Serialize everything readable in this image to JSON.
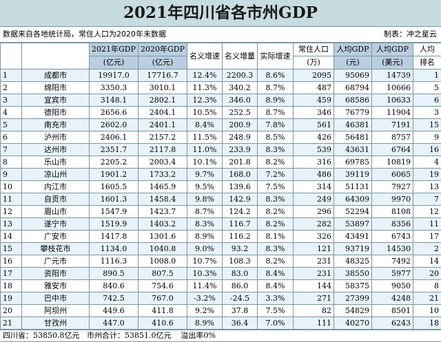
{
  "title": "2021年四川省各市州GDP",
  "note_left": "数据来自各地统计局，常住人口为2020年末数据",
  "note_right": "制表：冲之星云",
  "headers": {
    "gdp2021_top": "2021年GDP",
    "gdp2021_bottom": "(亿元)",
    "gdp2020_top": "2020年GDP",
    "gdp2020_bottom": "(亿元)",
    "nominal_growth": "名义增速",
    "nominal_increase": "名义增量",
    "real_growth": "实际增速",
    "pop_top": "常住人口",
    "pop_bottom": "(万)",
    "percap_top": "人均GDP",
    "percap_bottom": "(元)",
    "percap_usd_top": "人均GDP",
    "percap_usd_bottom": "(美元)",
    "rank_top": "人均",
    "rank_bottom": "排名"
  },
  "rows": [
    {
      "idx": "1",
      "city": "成都市",
      "g21": "19917.0",
      "g20": "17716.7",
      "ng": "12.4%",
      "ni": "2200.3",
      "rg": "8.6%",
      "pop": "2095",
      "pc": "95069",
      "pcu": "14739",
      "rank": "1"
    },
    {
      "idx": "2",
      "city": "绵阳市",
      "g21": "3350.3",
      "g20": "3010.1",
      "ng": "11.3%",
      "ni": "340.2",
      "rg": "8.7%",
      "pop": "487",
      "pc": "68794",
      "pcu": "10666",
      "rank": "5"
    },
    {
      "idx": "3",
      "city": "宜宾市",
      "g21": "3148.1",
      "g20": "2802.1",
      "ng": "12.3%",
      "ni": "346.0",
      "rg": "8.9%",
      "pop": "459",
      "pc": "68586",
      "pcu": "10633",
      "rank": "6"
    },
    {
      "idx": "4",
      "city": "德阳市",
      "g21": "2656.6",
      "g20": "2404.1",
      "ng": "10.5%",
      "ni": "252.5",
      "rg": "8.7%",
      "pop": "346",
      "pc": "76779",
      "pcu": "11904",
      "rank": "3"
    },
    {
      "idx": "5",
      "city": "南充市",
      "g21": "2602.0",
      "g20": "2401.1",
      "ng": "8.4%",
      "ni": "200.9",
      "rg": "7.8%",
      "pop": "561",
      "pc": "46381",
      "pcu": "7191",
      "rank": "15"
    },
    {
      "idx": "6",
      "city": "泸州市",
      "g21": "2406.1",
      "g20": "2157.2",
      "ng": "11.5%",
      "ni": "248.9",
      "rg": "8.5%",
      "pop": "426",
      "pc": "56481",
      "pcu": "8757",
      "rank": "9"
    },
    {
      "idx": "7",
      "city": "达州市",
      "g21": "2351.7",
      "g20": "2117.8",
      "ng": "11.0%",
      "ni": "233.9",
      "rg": "8.3%",
      "pop": "539",
      "pc": "43631",
      "pcu": "6764",
      "rank": "16"
    },
    {
      "idx": "8",
      "city": "乐山市",
      "g21": "2205.2",
      "g20": "2003.4",
      "ng": "10.1%",
      "ni": "201.8",
      "rg": "8.2%",
      "pop": "316",
      "pc": "69785",
      "pcu": "10819",
      "rank": "4"
    },
    {
      "idx": "9",
      "city": "凉山州",
      "g21": "1901.2",
      "g20": "1733.2",
      "ng": "9.7%",
      "ni": "168.0",
      "rg": "7.2%",
      "pop": "486",
      "pc": "39119",
      "pcu": "6065",
      "rank": "19"
    },
    {
      "idx": "10",
      "city": "内江市",
      "g21": "1605.5",
      "g20": "1465.9",
      "ng": "9.5%",
      "ni": "139.6",
      "rg": "7.5%",
      "pop": "314",
      "pc": "51131",
      "pcu": "7927",
      "rank": "13"
    },
    {
      "idx": "11",
      "city": "自贡市",
      "g21": "1601.3",
      "g20": "1458.4",
      "ng": "9.8%",
      "ni": "142.9",
      "rg": "8.3%",
      "pop": "249",
      "pc": "64309",
      "pcu": "9970",
      "rank": "7"
    },
    {
      "idx": "12",
      "city": "眉山市",
      "g21": "1547.9",
      "g20": "1423.7",
      "ng": "8.7%",
      "ni": "124.2",
      "rg": "8.2%",
      "pop": "296",
      "pc": "52294",
      "pcu": "8108",
      "rank": "12"
    },
    {
      "idx": "13",
      "city": "遂宁市",
      "g21": "1519.9",
      "g20": "1403.2",
      "ng": "8.3%",
      "ni": "116.7",
      "rg": "8.2%",
      "pop": "282",
      "pc": "53897",
      "pcu": "8356",
      "rank": "11"
    },
    {
      "idx": "14",
      "city": "广安市",
      "g21": "1417.8",
      "g20": "1301.6",
      "ng": "8.9%",
      "ni": "116.2",
      "rg": "8.1%",
      "pop": "326",
      "pc": "43491",
      "pcu": "6743",
      "rank": "17"
    },
    {
      "idx": "15",
      "city": "攀枝花市",
      "g21": "1134.0",
      "g20": "1040.8",
      "ng": "9.0%",
      "ni": "93.2",
      "rg": "8.3%",
      "pop": "121",
      "pc": "93719",
      "pcu": "14530",
      "rank": "2"
    },
    {
      "idx": "16",
      "city": "广元市",
      "g21": "1116.3",
      "g20": "1008.0",
      "ng": "10.7%",
      "ni": "108.3",
      "rg": "8.2%",
      "pop": "231",
      "pc": "48325",
      "pcu": "7492",
      "rank": "14"
    },
    {
      "idx": "17",
      "city": "资阳市",
      "g21": "890.5",
      "g20": "807.5",
      "ng": "10.3%",
      "ni": "83.0",
      "rg": "8.4%",
      "pop": "231",
      "pc": "38550",
      "pcu": "5977",
      "rank": "20"
    },
    {
      "idx": "18",
      "city": "雅安市",
      "g21": "840.6",
      "g20": "754.6",
      "ng": "11.4%",
      "ni": "86.0",
      "rg": "8.4%",
      "pop": "144",
      "pc": "58375",
      "pcu": "9050",
      "rank": "8"
    },
    {
      "idx": "19",
      "city": "巴中市",
      "g21": "742.5",
      "g20": "767.0",
      "ng": "-3.2%",
      "ni": "-24.5",
      "rg": "3.3%",
      "pop": "271",
      "pc": "27399",
      "pcu": "4248",
      "rank": "21"
    },
    {
      "idx": "20",
      "city": "阿坝州",
      "g21": "449.6",
      "g20": "411.8",
      "ng": "9.2%",
      "ni": "37.8",
      "rg": "7.5%",
      "pop": "82",
      "pc": "54829",
      "pcu": "8501",
      "rank": "10"
    },
    {
      "idx": "21",
      "city": "甘孜州",
      "g21": "447.0",
      "g20": "410.6",
      "ng": "8.9%",
      "ni": "36.4",
      "rg": "7.0%",
      "pop": "111",
      "pc": "40270",
      "pcu": "6243",
      "rank": "18"
    }
  ],
  "footer": "四川省：53850.8亿元   市州合计：53851.0亿元    溢出率0%"
}
